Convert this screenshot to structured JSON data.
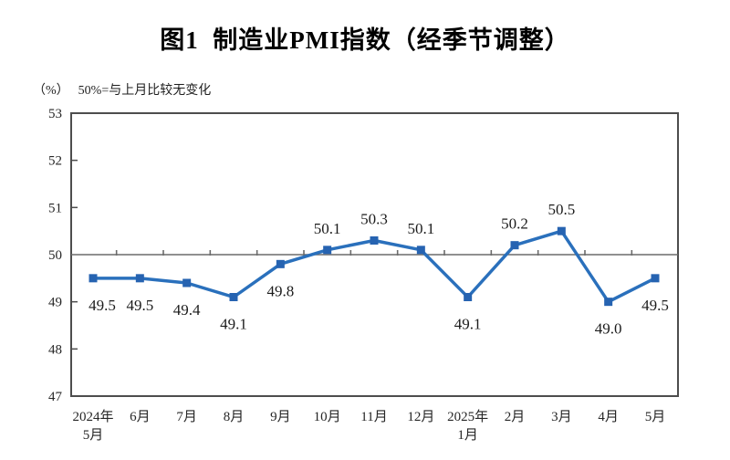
{
  "chart_data": {
    "type": "line",
    "title": "图1  制造业PMI指数（经季节调整）",
    "unit_label": "（%）",
    "note": "50%=与上月比较无变化",
    "categories": [
      [
        "2024年",
        "5月"
      ],
      [
        "6月"
      ],
      [
        "7月"
      ],
      [
        "8月"
      ],
      [
        "9月"
      ],
      [
        "10月"
      ],
      [
        "11月"
      ],
      [
        "12月"
      ],
      [
        "2025年",
        "1月"
      ],
      [
        "2月"
      ],
      [
        "3月"
      ],
      [
        "4月"
      ],
      [
        "5月"
      ]
    ],
    "values": [
      49.5,
      49.5,
      49.4,
      49.1,
      49.8,
      50.1,
      50.3,
      50.1,
      49.1,
      50.2,
      50.5,
      49.0,
      49.5
    ],
    "data_labels": [
      "49.5",
      "49.5",
      "49.4",
      "49.1",
      "49.8",
      "50.1",
      "50.3",
      "50.1",
      "49.1",
      "50.2",
      "50.5",
      "49.0",
      "49.5"
    ],
    "ylim": [
      47,
      53
    ],
    "yticks": [
      47,
      48,
      49,
      50,
      51,
      52,
      53
    ],
    "reference_value": 50,
    "grid": "reference-line-only",
    "legend": "none",
    "colors": {
      "line": "#2A70BC",
      "marker": "#2663B1",
      "data_label": "#1b1b1b",
      "axis": "#4d4d4d",
      "tick_label": "#262626",
      "reference_line": "#6b6b6b",
      "title": "#000000"
    }
  }
}
